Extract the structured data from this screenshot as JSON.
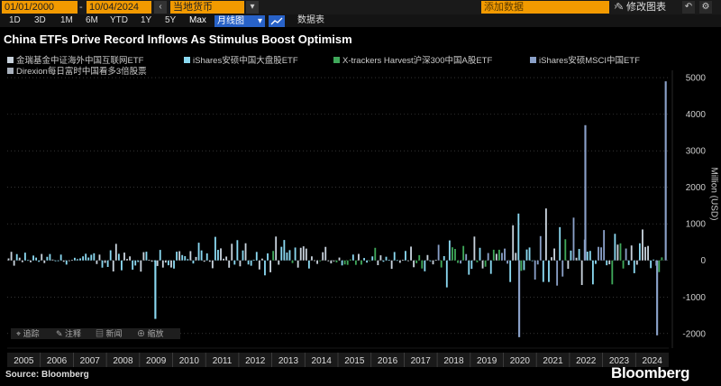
{
  "toolbar": {
    "start_date": "01/01/2000",
    "end_date": "10/04/2024",
    "currency": "当地货币",
    "add_data_placeholder": "添加数据",
    "edit_chart": "修改图表",
    "periods": [
      "1D",
      "3D",
      "1M",
      "6M",
      "YTD",
      "1Y",
      "5Y",
      "Max"
    ],
    "mode": "月线图",
    "data_tab": "数据表"
  },
  "annotations": [
    "追踪",
    "注释",
    "新闻",
    "缩放"
  ],
  "source": "Source: Bloomberg",
  "brand": "Bloomberg",
  "colors": {
    "background": "#000000",
    "accent_orange": "#f29a00",
    "accent_blue": "#2862c8",
    "series_kweb": "#c8d2dc",
    "series_fxi": "#8ad8f0",
    "series_ashr": "#3fa85a",
    "series_mchi": "#8aa0c8",
    "series_yinn": "#a8b0bc"
  },
  "chart_data": {
    "type": "bar",
    "title": "China ETFs Drive Record Inflows As Stimulus Boost Optimism",
    "xlabel": "",
    "ylabel": "Million (USD)",
    "ylim": [
      -2400,
      5200
    ],
    "yticks": [
      -2000,
      -1000,
      0,
      1000,
      2000,
      3000,
      4000,
      5000
    ],
    "xticks": [
      "2005",
      "2006",
      "2007",
      "2008",
      "2009",
      "2010",
      "2011",
      "2012",
      "2013",
      "2014",
      "2015",
      "2016",
      "2017",
      "2018",
      "2019",
      "2020",
      "2021",
      "2022",
      "2023",
      "2024"
    ],
    "grid": true,
    "legend_position": "top",
    "series": [
      {
        "name": "金瑞基金中证海外中国互联网ETF",
        "color": "#c8d2dc"
      },
      {
        "name": "iShares安硕中国大盘股ETF",
        "color": "#8ad8f0"
      },
      {
        "name": "X-trackers Harvest沪深300中国A股ETF",
        "color": "#3fa85a"
      },
      {
        "name": "iShares安硕MSCI中国ETF",
        "color": "#8aa0c8"
      },
      {
        "name": "Direxion每日富时中国看多3倍股票",
        "color": "#a8b0bc"
      }
    ],
    "notable_bars": [
      {
        "x": "2009",
        "series": "iShares安硕中国大盘股ETF",
        "value": -1600
      },
      {
        "x": "2020",
        "series": "iShares安硕MSCI中国ETF",
        "value": -2100
      },
      {
        "x": "2022",
        "series": "iShares安硕MSCI中国ETF",
        "value": 3700
      },
      {
        "x": "2024",
        "series": "iShares安硕MSCI中国ETF",
        "value": -2050
      },
      {
        "x": "2024",
        "series": "iShares安硕MSCI中国ETF",
        "value": 4900
      }
    ]
  }
}
